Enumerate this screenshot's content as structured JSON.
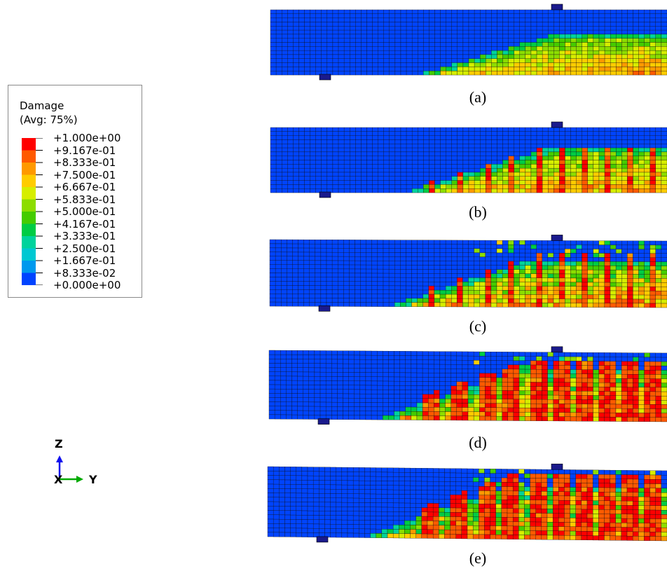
{
  "legend": {
    "title": "Damage",
    "subtitle": "(Avg: 75%)",
    "levels": [
      {
        "label": "+1.000e+00",
        "color": "#ff0000"
      },
      {
        "label": "+9.167e-01",
        "color": "#ff5a00"
      },
      {
        "label": "+8.333e-01",
        "color": "#ff9900"
      },
      {
        "label": "+7.500e-01",
        "color": "#ffcc00"
      },
      {
        "label": "+6.667e-01",
        "color": "#d6ee00"
      },
      {
        "label": "+5.833e-01",
        "color": "#8cdd00"
      },
      {
        "label": "+5.000e-01",
        "color": "#44cc00"
      },
      {
        "label": "+4.167e-01",
        "color": "#00cc44"
      },
      {
        "label": "+3.333e-01",
        "color": "#00d39c"
      },
      {
        "label": "+2.500e-01",
        "color": "#00c8d2"
      },
      {
        "label": "+1.667e-01",
        "color": "#0099ee"
      },
      {
        "label": "+8.333e-02",
        "color": "#0044ff"
      },
      {
        "label": "+0.000e+00",
        "color": "#0000cc"
      }
    ]
  },
  "axes": {
    "z_label": "Z",
    "y_label": "Y",
    "x_label": "X"
  },
  "panels": [
    {
      "caption": "(a)"
    },
    {
      "caption": "(b)"
    },
    {
      "caption": "(c)"
    },
    {
      "caption": "(d)"
    },
    {
      "caption": "(e)"
    }
  ]
}
